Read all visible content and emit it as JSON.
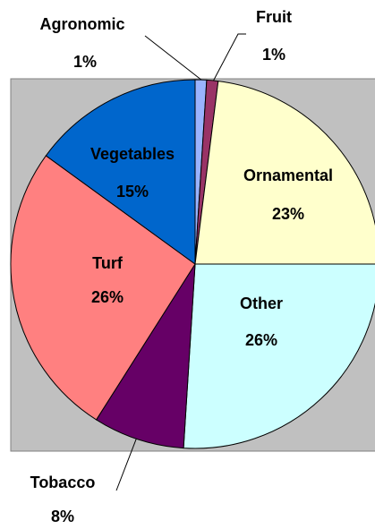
{
  "chart_data": {
    "type": "pie",
    "categories": [
      "Agronomic",
      "Fruit",
      "Ornamental",
      "Other",
      "Tobacco",
      "Turf",
      "Vegetables"
    ],
    "values": [
      1,
      1,
      23,
      26,
      8,
      26,
      15
    ],
    "value_labels": [
      "1%",
      "1%",
      "23%",
      "26%",
      "8%",
      "26%",
      "15%"
    ],
    "colors": [
      "#99b3ff",
      "#993366",
      "#ffffcc",
      "#ccffff",
      "#660066",
      "#ff8080",
      "#0066cc"
    ]
  }
}
